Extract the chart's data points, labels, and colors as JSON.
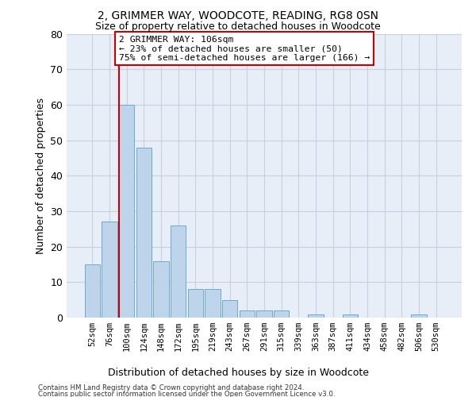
{
  "title": "2, GRIMMER WAY, WOODCOTE, READING, RG8 0SN",
  "subtitle": "Size of property relative to detached houses in Woodcote",
  "xlabel_bottom": "Distribution of detached houses by size in Woodcote",
  "ylabel": "Number of detached properties",
  "categories": [
    "52sqm",
    "76sqm",
    "100sqm",
    "124sqm",
    "148sqm",
    "172sqm",
    "195sqm",
    "219sqm",
    "243sqm",
    "267sqm",
    "291sqm",
    "315sqm",
    "339sqm",
    "363sqm",
    "387sqm",
    "411sqm",
    "434sqm",
    "458sqm",
    "482sqm",
    "506sqm",
    "530sqm"
  ],
  "values": [
    15,
    27,
    60,
    48,
    16,
    26,
    8,
    8,
    5,
    2,
    2,
    2,
    0,
    1,
    0,
    1,
    0,
    0,
    0,
    1,
    0
  ],
  "bar_color": "#bdd4eb",
  "bar_edge_color": "#6aaad4",
  "highlight_line_color": "#cc0000",
  "highlight_line_index": 2,
  "annotation_text": "2 GRIMMER WAY: 106sqm\n← 23% of detached houses are smaller (50)\n75% of semi-detached houses are larger (166) →",
  "annotation_box_facecolor": "#ffffff",
  "annotation_box_edgecolor": "#cc0000",
  "ylim": [
    0,
    80
  ],
  "yticks": [
    0,
    10,
    20,
    30,
    40,
    50,
    60,
    70,
    80
  ],
  "grid_color": "#c8d0e0",
  "bg_color": "#e8eef8",
  "footer_line1": "Contains HM Land Registry data © Crown copyright and database right 2024.",
  "footer_line2": "Contains public sector information licensed under the Open Government Licence v3.0."
}
